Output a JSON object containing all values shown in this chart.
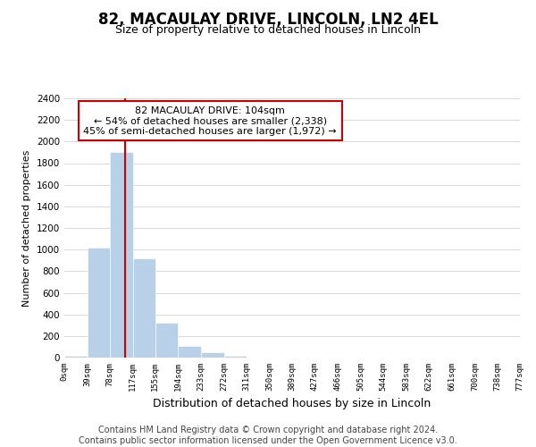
{
  "title": "82, MACAULAY DRIVE, LINCOLN, LN2 4EL",
  "subtitle": "Size of property relative to detached houses in Lincoln",
  "xlabel": "Distribution of detached houses by size in Lincoln",
  "ylabel": "Number of detached properties",
  "bar_color": "#b8d0e8",
  "vline_color": "#cc0000",
  "vline_x": 104,
  "annotation_text": "82 MACAULAY DRIVE: 104sqm\n← 54% of detached houses are smaller (2,338)\n45% of semi-detached houses are larger (1,972) →",
  "bin_edges": [
    0,
    39,
    78,
    117,
    155,
    194,
    233,
    272,
    311,
    350,
    389,
    427,
    466,
    505,
    544,
    583,
    622,
    661,
    700,
    738,
    777
  ],
  "bar_heights": [
    20,
    1020,
    1900,
    920,
    320,
    110,
    50,
    20,
    0,
    0,
    0,
    0,
    0,
    0,
    0,
    0,
    0,
    0,
    0,
    0
  ],
  "ylim": [
    0,
    2400
  ],
  "yticks": [
    0,
    200,
    400,
    600,
    800,
    1000,
    1200,
    1400,
    1600,
    1800,
    2000,
    2200,
    2400
  ],
  "footer_line1": "Contains HM Land Registry data © Crown copyright and database right 2024.",
  "footer_line2": "Contains public sector information licensed under the Open Government Licence v3.0.",
  "background_color": "#ffffff",
  "grid_color": "#d8d8d8",
  "box_color": "#cc0000",
  "title_fontsize": 12,
  "subtitle_fontsize": 9,
  "footer_fontsize": 7
}
